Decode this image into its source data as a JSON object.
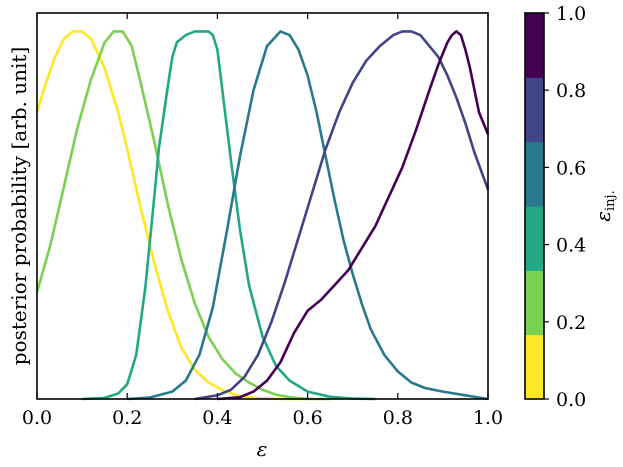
{
  "chart_data": {
    "type": "line",
    "xlabel": "ε",
    "ylabel": "posterior probability [arb. unit]",
    "xlim": [
      0.0,
      1.0
    ],
    "ylim": [
      0.0,
      1.05
    ],
    "x_ticks": [
      "0.0",
      "0.2",
      "0.4",
      "0.6",
      "0.8",
      "1.0"
    ],
    "grid": false,
    "colorbar": {
      "label": "ε_inj.",
      "ticks": [
        "0.0",
        "0.2",
        "0.4",
        "0.6",
        "0.8",
        "1.0"
      ],
      "colors": [
        "#fde725",
        "#7ad151",
        "#22a884",
        "#2a788e",
        "#414487",
        "#440154"
      ]
    },
    "series": [
      {
        "color": "#fde725",
        "x": [
          0.0,
          0.02,
          0.04,
          0.06,
          0.08,
          0.1,
          0.12,
          0.15,
          0.18,
          0.2,
          0.23,
          0.26,
          0.29,
          0.32,
          0.35,
          0.38,
          0.41,
          0.44,
          0.47,
          0.5,
          0.55,
          0.6
        ],
        "y": [
          0.78,
          0.86,
          0.93,
          0.98,
          1.0,
          1.0,
          0.98,
          0.9,
          0.78,
          0.68,
          0.52,
          0.37,
          0.24,
          0.14,
          0.08,
          0.045,
          0.025,
          0.012,
          0.005,
          0.002,
          0.0,
          0.0
        ]
      },
      {
        "color": "#7ad151",
        "x": [
          0.0,
          0.03,
          0.06,
          0.09,
          0.12,
          0.15,
          0.17,
          0.19,
          0.21,
          0.23,
          0.26,
          0.29,
          0.32,
          0.35,
          0.38,
          0.41,
          0.44,
          0.47,
          0.5,
          0.53,
          0.56,
          0.6,
          0.65
        ],
        "y": [
          0.29,
          0.42,
          0.58,
          0.74,
          0.87,
          0.97,
          1.0,
          1.0,
          0.96,
          0.86,
          0.7,
          0.53,
          0.38,
          0.26,
          0.17,
          0.11,
          0.07,
          0.045,
          0.025,
          0.012,
          0.005,
          0.0,
          0.0
        ]
      },
      {
        "color": "#22a884",
        "x": [
          0.1,
          0.15,
          0.18,
          0.2,
          0.22,
          0.24,
          0.26,
          0.27,
          0.29,
          0.3,
          0.31,
          0.32,
          0.33,
          0.35,
          0.38,
          0.39,
          0.4,
          0.41,
          0.43,
          0.45,
          0.47,
          0.5,
          0.53,
          0.56,
          0.6,
          0.65,
          0.7,
          0.75
        ],
        "y": [
          0.0,
          0.003,
          0.015,
          0.04,
          0.12,
          0.3,
          0.55,
          0.68,
          0.85,
          0.93,
          0.97,
          0.98,
          0.99,
          1.0,
          1.0,
          0.99,
          0.95,
          0.85,
          0.65,
          0.46,
          0.31,
          0.17,
          0.09,
          0.05,
          0.02,
          0.006,
          0.001,
          0.0
        ]
      },
      {
        "color": "#2a788e",
        "x": [
          0.2,
          0.25,
          0.3,
          0.33,
          0.36,
          0.39,
          0.42,
          0.45,
          0.48,
          0.51,
          0.54,
          0.56,
          0.58,
          0.6,
          0.62,
          0.64,
          0.66,
          0.68,
          0.7,
          0.72,
          0.74,
          0.77,
          0.8,
          0.83,
          0.86,
          0.9,
          0.95,
          1.0
        ],
        "y": [
          0.0,
          0.004,
          0.02,
          0.05,
          0.12,
          0.25,
          0.45,
          0.66,
          0.84,
          0.96,
          1.0,
          0.99,
          0.95,
          0.88,
          0.78,
          0.66,
          0.54,
          0.43,
          0.34,
          0.26,
          0.19,
          0.12,
          0.075,
          0.045,
          0.03,
          0.02,
          0.01,
          0.0
        ]
      },
      {
        "color": "#414487",
        "x": [
          0.35,
          0.4,
          0.43,
          0.46,
          0.49,
          0.52,
          0.55,
          0.58,
          0.61,
          0.64,
          0.67,
          0.7,
          0.73,
          0.76,
          0.79,
          0.81,
          0.83,
          0.85,
          0.87,
          0.89,
          0.91,
          0.93,
          0.95,
          0.97,
          1.0
        ],
        "y": [
          0.0,
          0.01,
          0.025,
          0.06,
          0.12,
          0.21,
          0.32,
          0.44,
          0.56,
          0.68,
          0.78,
          0.86,
          0.92,
          0.96,
          0.99,
          1.0,
          1.0,
          0.99,
          0.96,
          0.93,
          0.88,
          0.82,
          0.75,
          0.67,
          0.57
        ]
      },
      {
        "color": "#440154",
        "x": [
          0.4,
          0.45,
          0.48,
          0.51,
          0.54,
          0.57,
          0.6,
          0.63,
          0.66,
          0.69,
          0.72,
          0.75,
          0.78,
          0.81,
          0.84,
          0.87,
          0.89,
          0.91,
          0.92,
          0.93,
          0.94,
          0.95,
          0.96,
          0.97,
          0.98,
          1.0
        ],
        "y": [
          0.0,
          0.005,
          0.02,
          0.05,
          0.1,
          0.18,
          0.24,
          0.27,
          0.31,
          0.35,
          0.41,
          0.47,
          0.55,
          0.63,
          0.73,
          0.84,
          0.91,
          0.97,
          0.99,
          1.0,
          0.99,
          0.95,
          0.9,
          0.84,
          0.78,
          0.72
        ]
      }
    ]
  }
}
